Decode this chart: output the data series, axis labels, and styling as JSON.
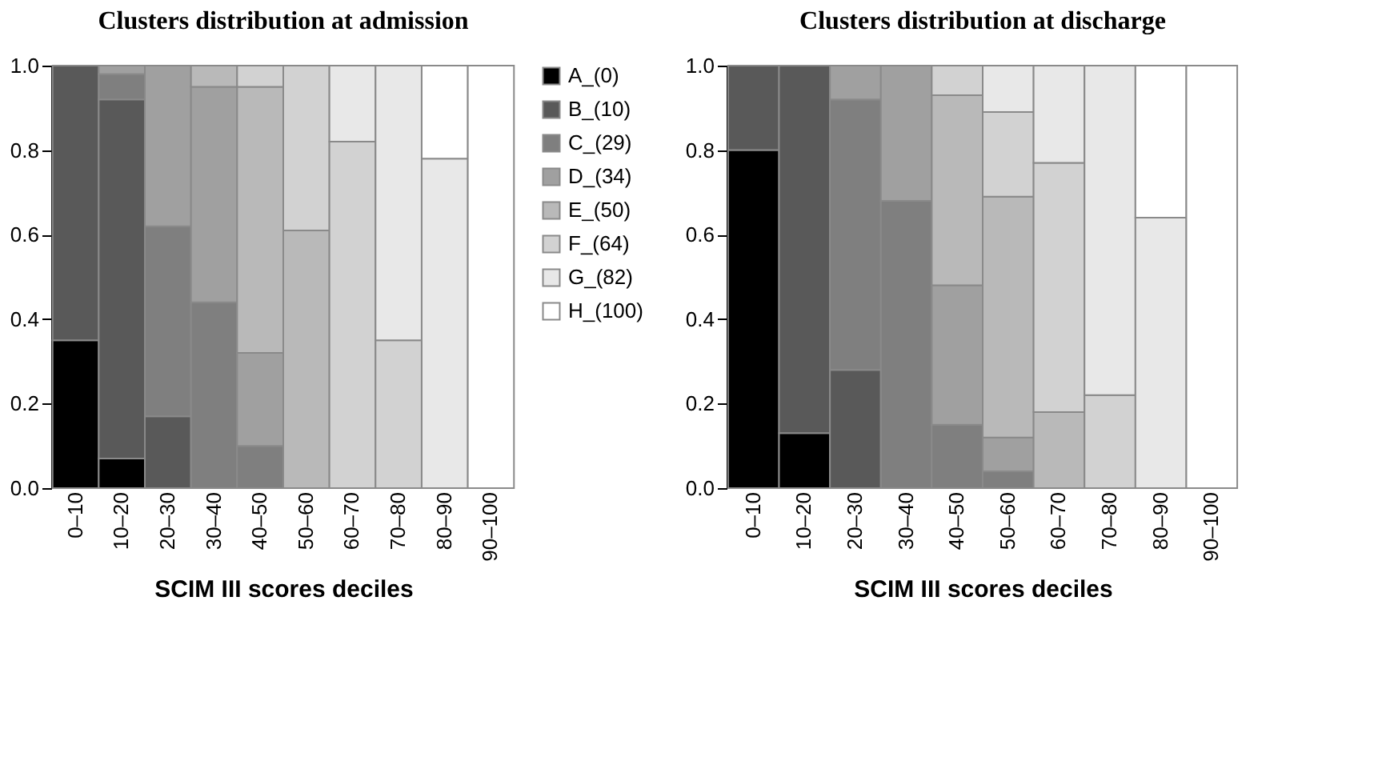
{
  "chart_data": [
    {
      "type": "bar",
      "stacked": true,
      "title": "Clusters distribution at admission",
      "xlabel": "SCIM III scores deciles",
      "categories": [
        "0–10",
        "10–20",
        "20–30",
        "30–40",
        "40–50",
        "50–60",
        "60–70",
        "70–80",
        "80–90",
        "90–100"
      ],
      "series": [
        {
          "name": "A_(0)",
          "color": "#000000",
          "values": [
            0.35,
            0.07,
            null,
            null,
            null,
            null,
            null,
            null,
            null,
            null
          ]
        },
        {
          "name": "B_(10)",
          "color": "#595959",
          "values": [
            0.65,
            0.85,
            0.17,
            null,
            null,
            null,
            null,
            null,
            null,
            null
          ]
        },
        {
          "name": "C_(29)",
          "color": "#7f7f7f",
          "values": [
            null,
            0.06,
            0.45,
            0.44,
            0.1,
            null,
            null,
            null,
            null,
            null
          ]
        },
        {
          "name": "D_(34)",
          "color": "#a0a0a0",
          "values": [
            null,
            0.02,
            0.38,
            0.51,
            0.22,
            null,
            null,
            null,
            null,
            null
          ]
        },
        {
          "name": "E_(50)",
          "color": "#b9b9b9",
          "values": [
            null,
            null,
            null,
            0.05,
            0.63,
            0.61,
            null,
            null,
            null,
            null
          ]
        },
        {
          "name": "F_(64)",
          "color": "#d2d2d2",
          "values": [
            null,
            null,
            null,
            null,
            0.05,
            0.39,
            0.82,
            0.35,
            null,
            null
          ]
        },
        {
          "name": "G_(82)",
          "color": "#e8e8e8",
          "values": [
            null,
            null,
            null,
            null,
            null,
            null,
            0.18,
            0.65,
            0.78,
            null
          ]
        },
        {
          "name": "H_(100)",
          "color": "#ffffff",
          "values": [
            null,
            null,
            null,
            null,
            null,
            null,
            null,
            null,
            0.22,
            1.0
          ]
        }
      ],
      "ylim": [
        0,
        1
      ],
      "yticks": [
        {
          "value": 0,
          "label": "0.0"
        },
        {
          "value": 0.2,
          "label": "0.2"
        },
        {
          "value": 0.4,
          "label": "0.4"
        },
        {
          "value": 0.6,
          "label": "0.6"
        },
        {
          "value": 0.8,
          "label": "0.8"
        },
        {
          "value": 1,
          "label": "1.0"
        }
      ],
      "legend": "right",
      "grid": false
    },
    {
      "type": "bar",
      "stacked": true,
      "title": "Clusters distribution at discharge",
      "xlabel": "SCIM III scores deciles",
      "categories": [
        "0–10",
        "10–20",
        "20–30",
        "30–40",
        "40–50",
        "50–60",
        "60–70",
        "70–80",
        "80–90",
        "90–100"
      ],
      "series": [
        {
          "color": "#000000",
          "values": [
            0.8,
            0.13,
            null,
            null,
            null,
            null,
            null,
            null,
            null,
            null
          ]
        },
        {
          "color": "#595959",
          "values": [
            0.2,
            0.87,
            0.28,
            null,
            null,
            null,
            null,
            null,
            null,
            null
          ]
        },
        {
          "color": "#7f7f7f",
          "values": [
            null,
            null,
            0.64,
            0.68,
            0.15,
            0.04,
            null,
            null,
            null,
            null
          ]
        },
        {
          "color": "#a0a0a0",
          "values": [
            null,
            null,
            0.08,
            0.32,
            0.33,
            0.08,
            null,
            null,
            null,
            null
          ]
        },
        {
          "color": "#b9b9b9",
          "values": [
            null,
            null,
            null,
            null,
            0.45,
            0.57,
            0.18,
            null,
            null,
            null
          ]
        },
        {
          "color": "#d2d2d2",
          "values": [
            null,
            null,
            null,
            null,
            0.07,
            0.2,
            0.59,
            0.22,
            null,
            null
          ]
        },
        {
          "color": "#e8e8e8",
          "values": [
            null,
            null,
            null,
            null,
            null,
            0.11,
            0.23,
            0.78,
            0.64,
            null
          ]
        },
        {
          "color": "#ffffff",
          "values": [
            null,
            null,
            null,
            null,
            null,
            null,
            null,
            null,
            0.36,
            1.0
          ]
        }
      ],
      "ylim": [
        0,
        1
      ],
      "yticks": [
        {
          "value": 0,
          "label": "0.0"
        },
        {
          "value": 0.2,
          "label": "0.2"
        },
        {
          "value": 0.4,
          "label": "0.4"
        },
        {
          "value": 0.6,
          "label": "0.6"
        },
        {
          "value": 0.8,
          "label": "0.8"
        },
        {
          "value": 1,
          "label": "1.0"
        }
      ],
      "legend": false,
      "grid": false
    }
  ]
}
